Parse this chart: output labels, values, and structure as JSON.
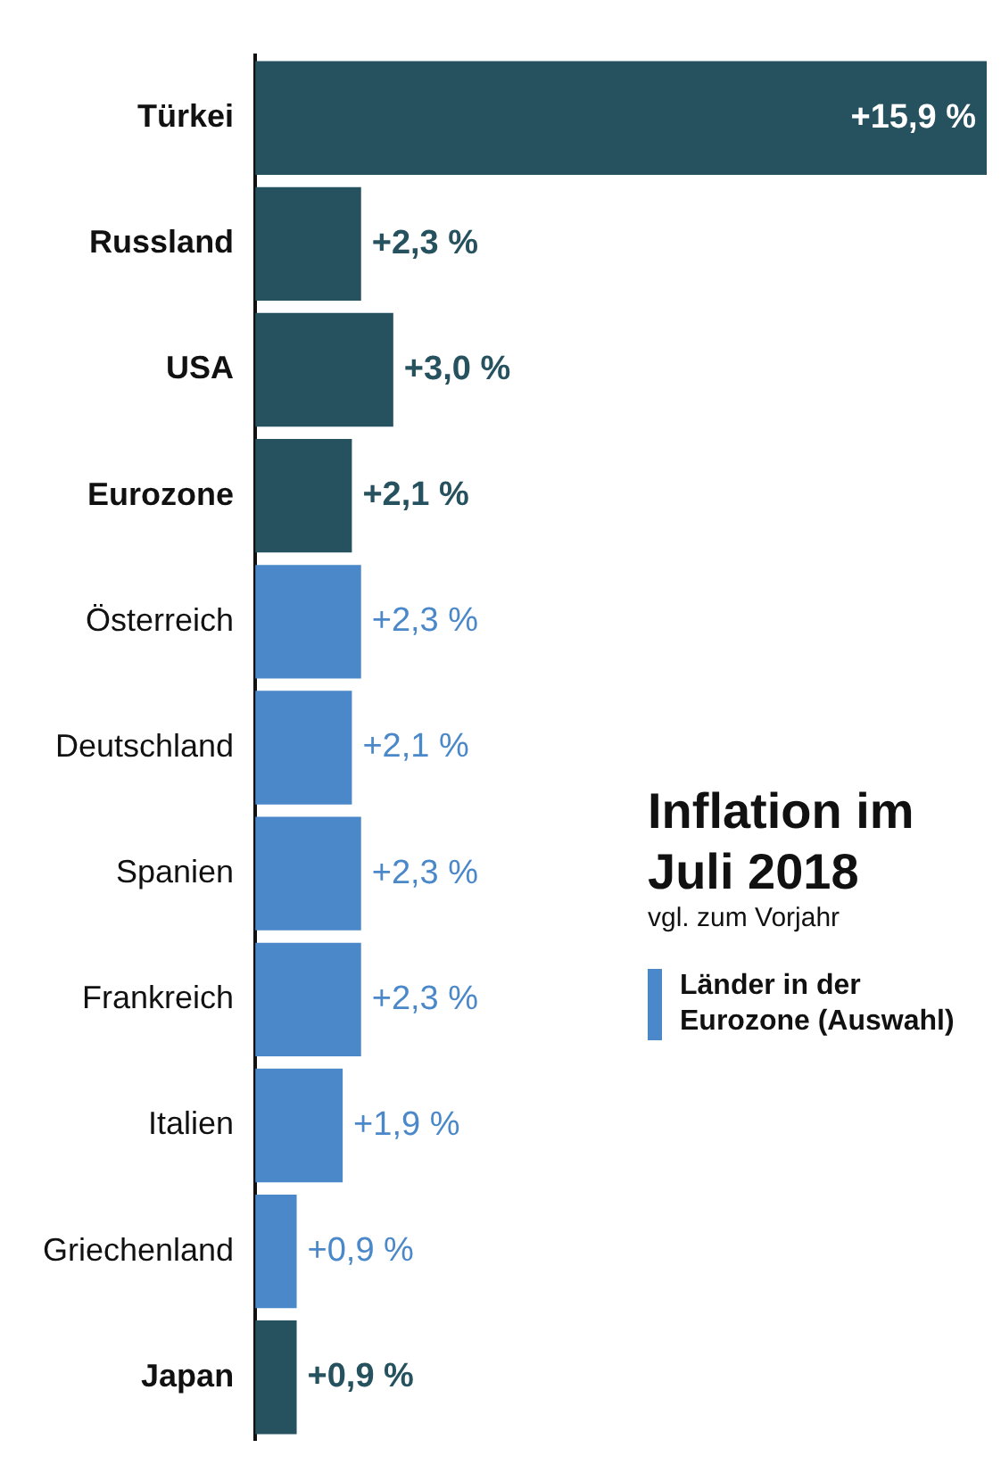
{
  "chart_data": {
    "type": "bar",
    "orientation": "horizontal",
    "title": "Inflation im Juli 2018",
    "subtitle": "vgl. zum Vorjahr",
    "categories": [
      "Türkei",
      "Russland",
      "USA",
      "Eurozone",
      "Österreich",
      "Deutschland",
      "Spanien",
      "Frankreich",
      "Italien",
      "Griechenland",
      "Japan"
    ],
    "series": [
      {
        "color": "#26515f",
        "values": [
          15.9,
          2.3,
          3.0,
          2.1,
          null,
          null,
          null,
          null,
          null,
          null,
          0.9
        ],
        "value_labels": [
          "+15,9 %",
          "+2,3 %",
          "+3,0 %",
          "+2,1 %",
          null,
          null,
          null,
          null,
          null,
          null,
          "+0,9 %"
        ]
      },
      {
        "name": "Länder in der Eurozone (Auswahl)",
        "color": "#4a88c9",
        "values": [
          null,
          null,
          null,
          null,
          2.3,
          2.1,
          2.3,
          2.3,
          1.9,
          0.9,
          null
        ],
        "value_labels": [
          null,
          null,
          null,
          null,
          "+2,3 %",
          "+2,1 %",
          "+2,3 %",
          "+2,3 %",
          "+1,9 %",
          "+0,9 %",
          null
        ]
      }
    ],
    "grid": false,
    "legend": "right",
    "tick_labels": "y"
  }
}
